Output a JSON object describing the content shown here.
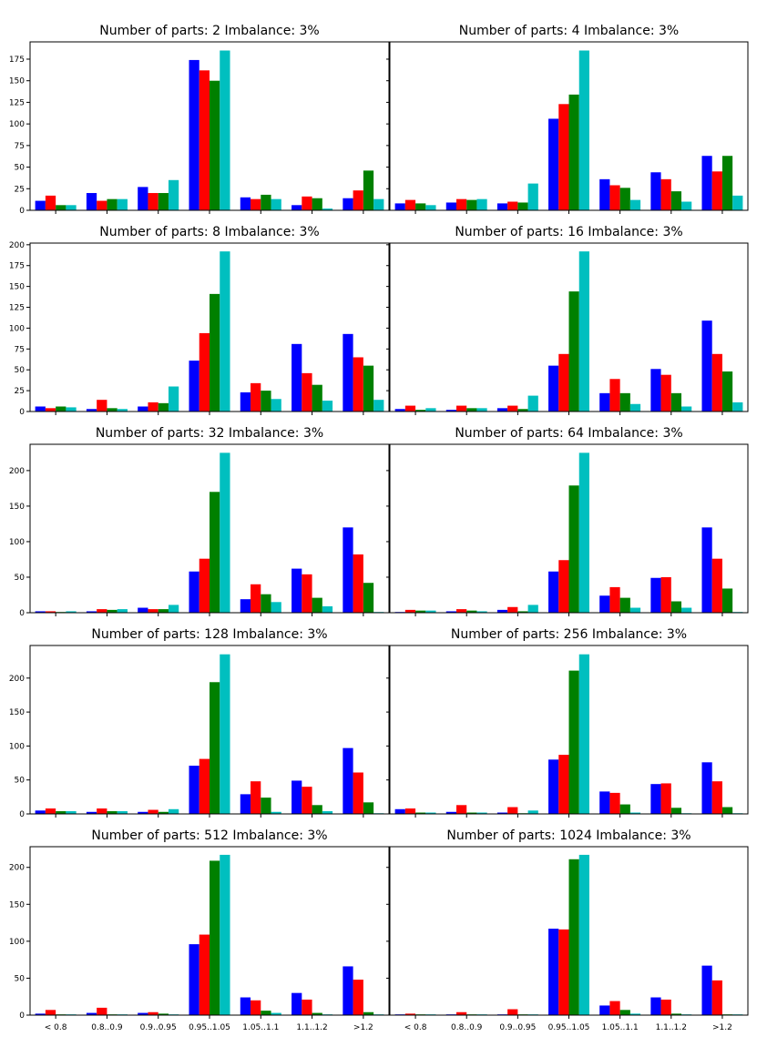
{
  "chart_data": {
    "type": "bar",
    "categories": [
      "< 0.8",
      "0.8..0.9",
      "0.9..0.95",
      "0.95..1.05",
      "1.05..1.1",
      "1.1..1.2",
      ">1.2"
    ],
    "series_colors": [
      "#0000ff",
      "#ff0000",
      "#008000",
      "#00bfbf"
    ],
    "shared_y_per_row": true,
    "grid": false,
    "legend": "none",
    "rows": [
      {
        "ylim": [
          0,
          195
        ],
        "yticks": [
          0,
          25,
          50,
          75,
          100,
          125,
          150,
          175
        ]
      },
      {
        "ylim": [
          0,
          202
        ],
        "yticks": [
          0,
          25,
          50,
          75,
          100,
          125,
          150,
          175,
          200
        ]
      },
      {
        "ylim": [
          0,
          237
        ],
        "yticks": [
          0,
          50,
          100,
          150,
          200
        ]
      },
      {
        "ylim": [
          0,
          248
        ],
        "yticks": [
          0,
          50,
          100,
          150,
          200
        ]
      },
      {
        "ylim": [
          0,
          228
        ],
        "yticks": [
          0,
          50,
          100,
          150,
          200
        ]
      }
    ],
    "panels": [
      {
        "title": "Number of parts: 2   Imbalance: 3%",
        "row": 0,
        "col": 0,
        "series": [
          {
            "values": [
              11,
              20,
              27,
              174,
              15,
              6,
              14
            ]
          },
          {
            "values": [
              17,
              11,
              20,
              162,
              13,
              16,
              23
            ]
          },
          {
            "values": [
              6,
              13,
              20,
              150,
              18,
              14,
              46
            ]
          },
          {
            "values": [
              6,
              13,
              35,
              185,
              13,
              2,
              13
            ]
          }
        ]
      },
      {
        "title": "Number of parts: 4   Imbalance: 3%",
        "row": 0,
        "col": 1,
        "series": [
          {
            "values": [
              8,
              9,
              8,
              106,
              36,
              44,
              63
            ]
          },
          {
            "values": [
              12,
              13,
              10,
              123,
              29,
              36,
              45
            ]
          },
          {
            "values": [
              8,
              12,
              9,
              134,
              26,
              22,
              63
            ]
          },
          {
            "values": [
              6,
              13,
              31,
              185,
              12,
              10,
              17
            ]
          }
        ]
      },
      {
        "title": "Number of parts: 8   Imbalance: 3%",
        "row": 1,
        "col": 0,
        "series": [
          {
            "values": [
              6,
              3,
              6,
              61,
              23,
              81,
              93
            ]
          },
          {
            "values": [
              4,
              14,
              11,
              94,
              34,
              46,
              65
            ]
          },
          {
            "values": [
              6,
              4,
              10,
              141,
              25,
              32,
              55
            ]
          },
          {
            "values": [
              5,
              3,
              30,
              192,
              15,
              13,
              14
            ]
          }
        ]
      },
      {
        "title": "Number of parts: 16   Imbalance: 3%",
        "row": 1,
        "col": 1,
        "series": [
          {
            "values": [
              3,
              2,
              4,
              55,
              22,
              51,
              109
            ]
          },
          {
            "values": [
              7,
              7,
              7,
              69,
              39,
              44,
              69
            ]
          },
          {
            "values": [
              2,
              4,
              3,
              144,
              22,
              22,
              48
            ]
          },
          {
            "values": [
              4,
              4,
              19,
              192,
              9,
              6,
              11
            ]
          }
        ]
      },
      {
        "title": "Number of parts: 32   Imbalance: 3%",
        "row": 2,
        "col": 0,
        "series": [
          {
            "values": [
              2,
              2,
              7,
              58,
              19,
              62,
              120
            ]
          },
          {
            "values": [
              2,
              5,
              5,
              76,
              40,
              54,
              82
            ]
          },
          {
            "values": [
              1,
              4,
              5,
              170,
              26,
              21,
              42
            ]
          },
          {
            "values": [
              2,
              5,
              11,
              225,
              15,
              9,
              1
            ]
          }
        ]
      },
      {
        "title": "Number of parts: 64   Imbalance: 3%",
        "row": 2,
        "col": 1,
        "series": [
          {
            "values": [
              1,
              2,
              4,
              58,
              24,
              49,
              120
            ]
          },
          {
            "values": [
              4,
              5,
              8,
              74,
              36,
              50,
              76
            ]
          },
          {
            "values": [
              3,
              3,
              2,
              179,
              21,
              16,
              34
            ]
          },
          {
            "values": [
              3,
              2,
              11,
              225,
              7,
              7,
              1
            ]
          }
        ]
      },
      {
        "title": "Number of parts: 128   Imbalance: 3%",
        "row": 3,
        "col": 0,
        "series": [
          {
            "values": [
              5,
              3,
              3,
              71,
              29,
              49,
              97
            ]
          },
          {
            "values": [
              8,
              8,
              6,
              81,
              48,
              40,
              61
            ]
          },
          {
            "values": [
              4,
              4,
              3,
              194,
              24,
              13,
              17
            ]
          },
          {
            "values": [
              4,
              4,
              7,
              235,
              3,
              4,
              1
            ]
          }
        ]
      },
      {
        "title": "Number of parts: 256   Imbalance: 3%",
        "row": 3,
        "col": 1,
        "series": [
          {
            "values": [
              7,
              3,
              2,
              80,
              33,
              44,
              76
            ]
          },
          {
            "values": [
              8,
              13,
              10,
              87,
              31,
              45,
              48
            ]
          },
          {
            "values": [
              2,
              2,
              1,
              211,
              14,
              9,
              10
            ]
          },
          {
            "values": [
              2,
              2,
              5,
              235,
              2,
              1,
              1
            ]
          }
        ]
      },
      {
        "title": "Number of parts: 512   Imbalance: 3%",
        "row": 4,
        "col": 0,
        "series": [
          {
            "values": [
              2,
              3,
              3,
              96,
              24,
              30,
              66
            ]
          },
          {
            "values": [
              7,
              10,
              4,
              109,
              20,
              21,
              48
            ]
          },
          {
            "values": [
              1,
              1,
              2,
              209,
              6,
              3,
              4
            ]
          },
          {
            "values": [
              1,
              1,
              1,
              217,
              3,
              1,
              1
            ]
          }
        ]
      },
      {
        "title": "Number of parts: 1024   Imbalance: 3%",
        "row": 4,
        "col": 1,
        "series": [
          {
            "values": [
              1,
              1,
              1,
              117,
              13,
              24,
              67
            ]
          },
          {
            "values": [
              2,
              4,
              8,
              116,
              19,
              21,
              47
            ]
          },
          {
            "values": [
              1,
              1,
              1,
              211,
              7,
              2,
              1
            ]
          },
          {
            "values": [
              1,
              1,
              1,
              217,
              2,
              1,
              1
            ]
          }
        ]
      }
    ]
  }
}
